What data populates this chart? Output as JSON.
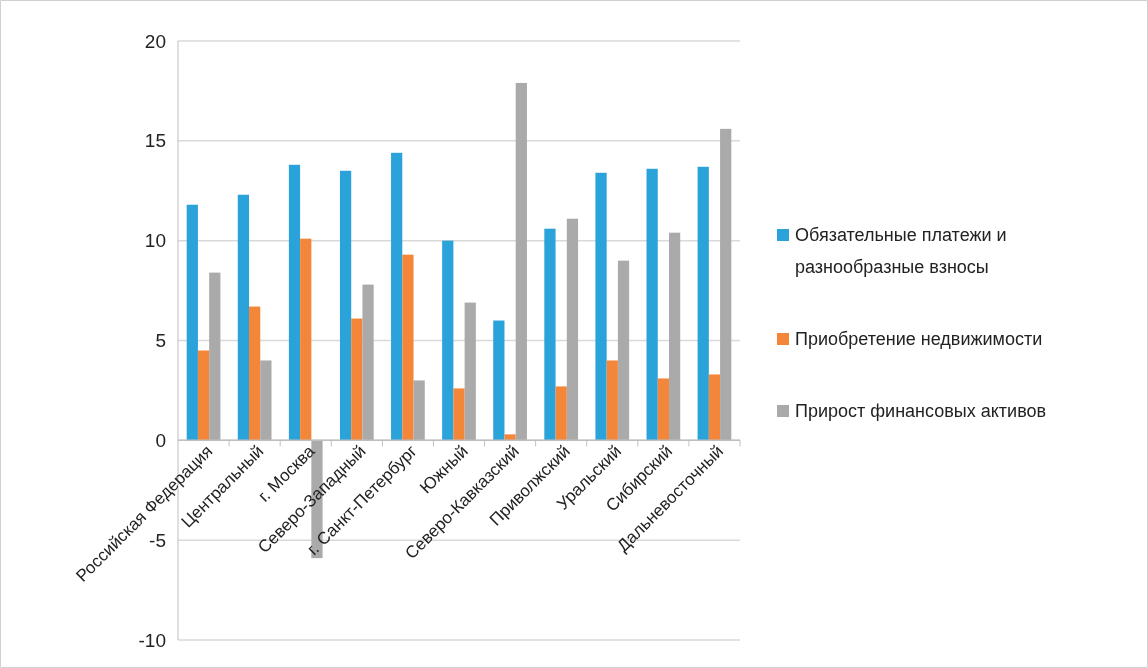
{
  "chart_data": {
    "type": "bar",
    "categories": [
      "Российская Федерация",
      "Центральный",
      "г. Москва",
      "Северо-Западный",
      "г. Санкт-Петербург",
      "Южный",
      "Северо-Кавказский",
      "Приволжский",
      "Уральский",
      "Сибирский",
      "Дальневосточный"
    ],
    "series": [
      {
        "name": "Обязательные платежи и разнообразные взносы",
        "color": "#2aa2da",
        "values": [
          11.8,
          12.3,
          13.8,
          13.5,
          14.4,
          10.0,
          6.0,
          10.6,
          13.4,
          13.6,
          13.7
        ]
      },
      {
        "name": "Приобретение недвижимости",
        "color": "#f4863a",
        "values": [
          4.5,
          6.7,
          10.1,
          6.1,
          9.3,
          2.6,
          0.3,
          2.7,
          4.0,
          3.1,
          3.3
        ]
      },
      {
        "name": "Прирост финансовых активов",
        "color": "#aaaaaa",
        "values": [
          8.4,
          4.0,
          -5.9,
          7.8,
          3.0,
          6.9,
          17.9,
          11.1,
          9.0,
          10.4,
          15.6
        ]
      }
    ],
    "ylim": [
      -10,
      20
    ],
    "yticks": [
      -10,
      -5,
      0,
      5,
      10,
      15,
      20
    ],
    "grid": "y",
    "legend": "right"
  }
}
